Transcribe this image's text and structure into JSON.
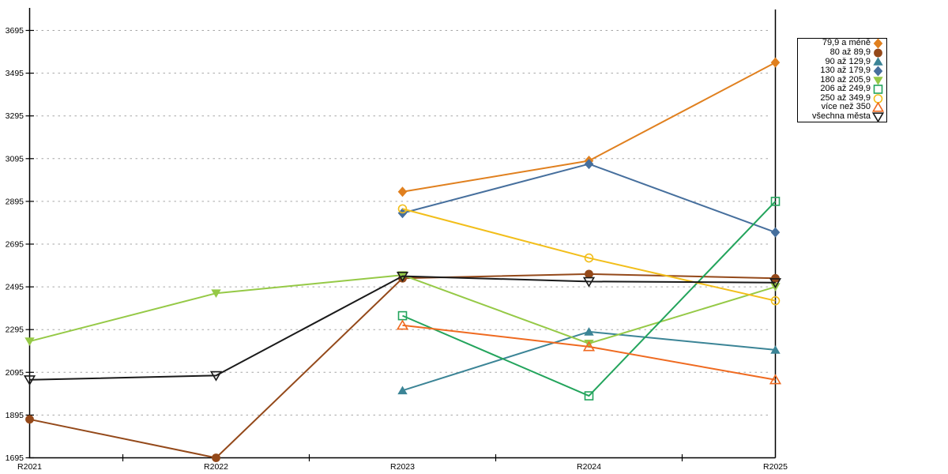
{
  "page": {
    "background": "#FFFFFF"
  },
  "chart_data": {
    "type": "line",
    "title": "",
    "xlabel": "",
    "ylabel": "",
    "categories": [
      "R2021",
      "R2022",
      "R2023",
      "R2024",
      "R2025"
    ],
    "yticks": [
      1695,
      1895,
      2095,
      2295,
      2495,
      2695,
      2895,
      3095,
      3295,
      3495,
      3695
    ],
    "ylim": [
      1695,
      3795
    ],
    "grid": true,
    "grid_color": "#A6A6A6",
    "axis_color": "#000000",
    "legend_position": "top-right",
    "series": [
      {
        "name": "79,9 a méně",
        "color": "#E0801F",
        "marker": "diamond",
        "marker_style": "filled",
        "values": [
          null,
          null,
          2940,
          3085,
          3545
        ]
      },
      {
        "name": "80 až 89,9",
        "color": "#94491A",
        "marker": "circle",
        "marker_style": "filled",
        "values": [
          1875,
          1695,
          2535,
          2555,
          2535
        ]
      },
      {
        "name": "90 až 129,9",
        "color": "#3B8496",
        "marker": "triangle-up",
        "marker_style": "filled",
        "values": [
          null,
          null,
          2010,
          2285,
          2200
        ]
      },
      {
        "name": "130 až 179,9",
        "color": "#466F9D",
        "marker": "diamond",
        "marker_style": "filled",
        "values": [
          null,
          null,
          2840,
          3070,
          2750
        ]
      },
      {
        "name": "180 až 205,9",
        "color": "#95C946",
        "marker": "triangle-down",
        "marker_style": "filled",
        "values": [
          2240,
          2465,
          2550,
          2230,
          2495
        ]
      },
      {
        "name": "206 až 249,9",
        "color": "#23A45C",
        "marker": "square",
        "marker_style": "open",
        "values": [
          null,
          null,
          2360,
          1985,
          2895
        ]
      },
      {
        "name": "250 až 349,9",
        "color": "#F2BE1A",
        "marker": "circle",
        "marker_style": "open",
        "values": [
          null,
          null,
          2860,
          2630,
          2430
        ]
      },
      {
        "name": "více než 350",
        "color": "#EF6A20",
        "marker": "triangle-up",
        "marker_style": "open",
        "values": [
          null,
          null,
          2315,
          2215,
          2060
        ]
      },
      {
        "name": "všechna města",
        "color": "#1A1A1A",
        "marker": "triangle-down",
        "marker_style": "open",
        "values": [
          2060,
          2080,
          2545,
          2520,
          2515
        ]
      }
    ]
  }
}
